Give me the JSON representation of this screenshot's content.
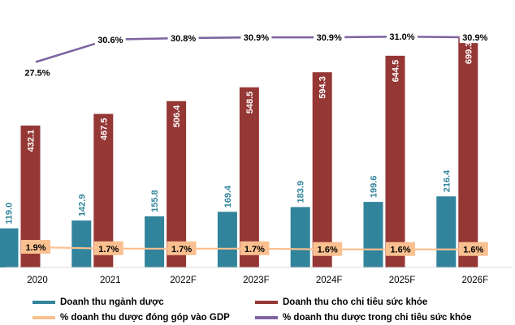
{
  "chart_data": {
    "type": "bar",
    "categories": [
      "2020",
      "2021",
      "2022F",
      "2023F",
      "2024F",
      "2025F",
      "2026F"
    ],
    "series": [
      {
        "name": "Doanh thu ngành dược",
        "kind": "bar",
        "color": "#31849b",
        "values": [
          119.0,
          142.9,
          155.8,
          169.4,
          183.9,
          199.6,
          216.4
        ],
        "labels": [
          "119.0",
          "142.9",
          "155.8",
          "169.4",
          "183.9",
          "199.6",
          "216.4"
        ]
      },
      {
        "name": "Doanh thu cho chi tiêu sức khỏe",
        "kind": "bar",
        "color": "#953735",
        "values": [
          432.1,
          467.5,
          506.4,
          548.5,
          594.3,
          644.5,
          699.3
        ],
        "labels": [
          "432.1",
          "467.5",
          "506.4",
          "548.5",
          "594.3",
          "644.5",
          "699.3"
        ]
      },
      {
        "name": "% doanh thu dược đóng góp vào GDP",
        "kind": "line",
        "color": "#fac090",
        "values": [
          1.9,
          1.7,
          1.7,
          1.7,
          1.6,
          1.6,
          1.6
        ],
        "labels": [
          "1.9%",
          "1.7%",
          "1.7%",
          "1.7%",
          "1.6%",
          "1.6%",
          "1.6%"
        ]
      },
      {
        "name": "% doanh thu dược trong chi tiêu sức khỏe",
        "kind": "line",
        "color": "#8064a2",
        "values": [
          27.5,
          30.6,
          30.8,
          30.9,
          30.9,
          31.0,
          30.9
        ],
        "labels": [
          "27.5%",
          "30.6%",
          "30.8%",
          "30.9%",
          "30.9%",
          "31.0%",
          "30.9%"
        ]
      }
    ],
    "legend_position": "bottom",
    "grid": false
  }
}
